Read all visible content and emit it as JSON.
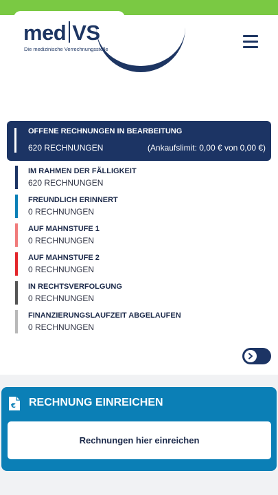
{
  "brand": {
    "logo_left": "med",
    "logo_right": "VS",
    "tagline": "Die medizinische Verrechnungsstelle",
    "color_primary": "#1c3464",
    "color_green": "#7ac943",
    "color_blue": "#0b7fb6"
  },
  "header": {
    "menu_icon": "hamburger-icon"
  },
  "open_invoices": {
    "title": "OFFENE RECHNUNGEN IN BEARBEITUNG",
    "count": "620 RECHNUNGEN",
    "limit": "(Ankaufslimit: 0,00 € von 0,00 €)"
  },
  "statuses": [
    {
      "title": "IM RAHMEN DER FÄLLIGKEIT",
      "count": "620 RECHNUNGEN",
      "color": "#1c3464"
    },
    {
      "title": "FREUNDLICH ERINNERT",
      "count": "0 RECHNUNGEN",
      "color": "#0b7fb6"
    },
    {
      "title": "AUF MAHNSTUFE 1",
      "count": "0 RECHNUNGEN",
      "color": "#f07b7b"
    },
    {
      "title": "AUF MAHNSTUFE 2",
      "count": "0 RECHNUNGEN",
      "color": "#e3262b"
    },
    {
      "title": "IN RECHTSVERFOLGUNG",
      "count": "0 RECHNUNGEN",
      "color": "#555555"
    },
    {
      "title": "FINANZIERUNGSLAUFZEIT ABGELAUFEN",
      "count": "0 RECHNUNGEN",
      "color": "#b8b8b8"
    }
  ],
  "submit": {
    "icon": "invoice-euro-icon",
    "title": "RECHNUNG EINREICHEN",
    "button_label": "Rechnungen hier einreichen"
  }
}
